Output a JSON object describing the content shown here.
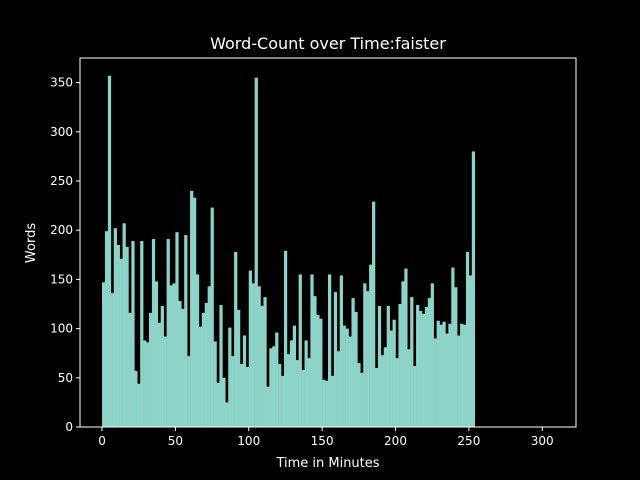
{
  "chart_data": {
    "type": "bar",
    "title": "Word-Count over Time:faister",
    "xlabel": "Time in Minutes",
    "ylabel": "Words",
    "xlim": [
      -15,
      323
    ],
    "ylim": [
      0,
      375
    ],
    "xticks": [
      0,
      50,
      100,
      150,
      200,
      250,
      300
    ],
    "yticks": [
      0,
      50,
      100,
      150,
      200,
      250,
      300,
      350
    ],
    "grid": false,
    "bar_width": 2,
    "x_start": 0,
    "values": [
      147,
      199,
      357,
      136,
      202,
      185,
      171,
      207,
      183,
      116,
      189,
      57,
      44,
      189,
      88,
      86,
      116,
      191,
      148,
      106,
      123,
      92,
      191,
      144,
      146,
      198,
      128,
      120,
      195,
      72,
      240,
      233,
      155,
      102,
      116,
      126,
      143,
      223,
      87,
      45,
      124,
      50,
      25,
      101,
      72,
      178,
      119,
      64,
      93,
      61,
      159,
      146,
      355,
      143,
      123,
      132,
      41,
      80,
      82,
      96,
      64,
      52,
      179,
      74,
      88,
      103,
      68,
      155,
      58,
      88,
      70,
      155,
      133,
      114,
      110,
      48,
      47,
      155,
      52,
      137,
      77,
      154,
      103,
      100,
      92,
      131,
      117,
      65,
      55,
      146,
      138,
      165,
      229,
      60,
      123,
      73,
      81,
      123,
      98,
      109,
      70,
      125,
      148,
      161,
      79,
      132,
      62,
      124,
      118,
      115,
      122,
      131,
      146,
      90,
      108,
      104,
      107,
      95,
      105,
      162,
      142,
      93,
      105,
      104,
      178,
      154,
      280
    ]
  }
}
